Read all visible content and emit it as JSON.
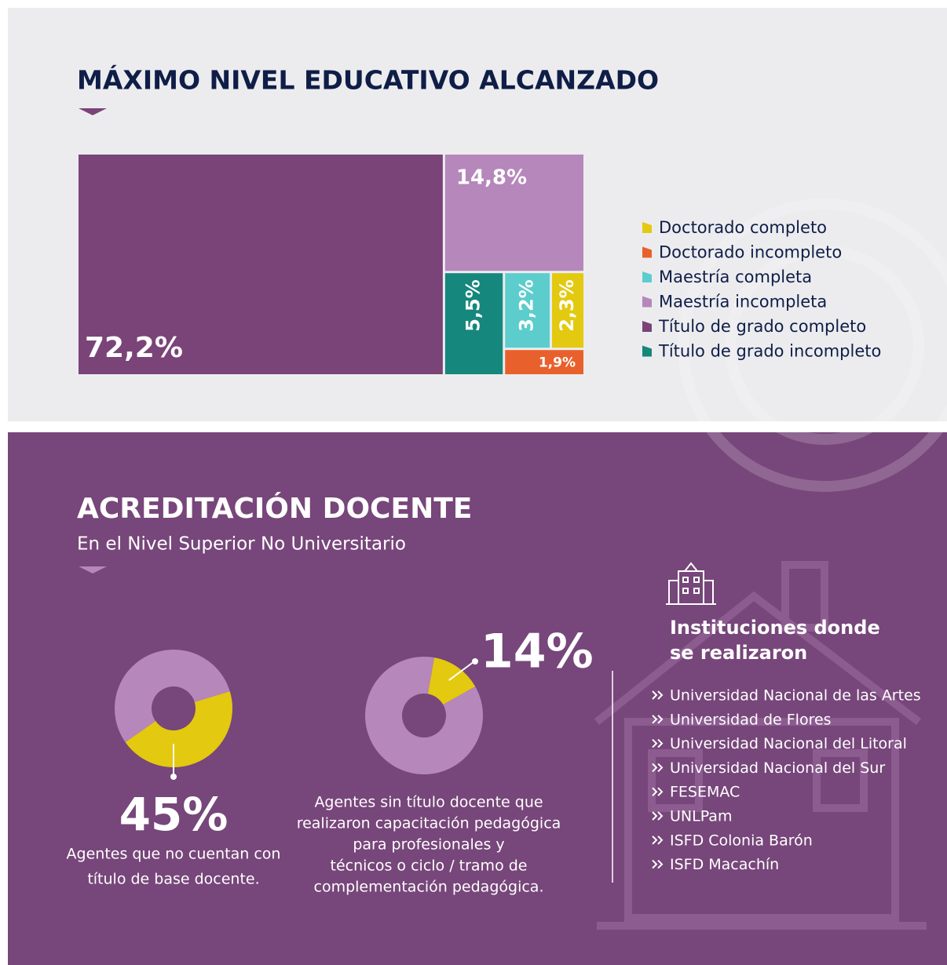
{
  "chart_data": [
    {
      "type": "treemap",
      "title": "MÁXIMO NIVEL EDUCATIVO ALCANZADO",
      "categories": [
        "Doctorado completo",
        "Doctorado incompleto",
        "Maestría completa",
        "Maestría incompleta",
        "Título de grado completo",
        "Título de grado incompleto"
      ],
      "values": [
        2.3,
        1.9,
        3.2,
        14.8,
        72.2,
        5.5
      ],
      "value_labels": [
        "2,3%",
        "1,9%",
        "3,2%",
        "14,8%",
        "72,2%",
        "5,5%"
      ],
      "colors": [
        "#e3c90f",
        "#e8612c",
        "#5ccdcc",
        "#b587bb",
        "#7a4478",
        "#15877c"
      ]
    },
    {
      "type": "donut",
      "values": [
        45,
        55
      ],
      "value_labels": [
        "45%",
        null
      ],
      "colors": [
        "#e3c90f",
        "#b587bb"
      ],
      "caption": [
        "Agentes que no cuentan con",
        "título de base docente."
      ]
    },
    {
      "type": "donut",
      "values": [
        14,
        86
      ],
      "value_labels": [
        "14%",
        null
      ],
      "colors": [
        "#e3c90f",
        "#b587bb"
      ],
      "caption": [
        "Agentes sin título docente que",
        "realizaron capacitación pedagógica",
        "para profesionales y",
        "técnicos o ciclo / tramo de",
        "complementación pedagógica."
      ]
    }
  ],
  "section": {
    "title": "ACREDITACIÓN DOCENTE",
    "subtitle": "En el Nivel Superior No Universitario"
  },
  "institutions": {
    "heading": [
      "Instituciones donde",
      "se realizaron"
    ],
    "items": [
      "Universidad Nacional de las Artes",
      "Universidad de Flores",
      "Universidad Nacional del Litoral",
      "Universidad Nacional del Sur",
      "FESEMAC",
      "UNLPam",
      "ISFD Colonia Barón",
      "ISFD Macachín"
    ]
  }
}
